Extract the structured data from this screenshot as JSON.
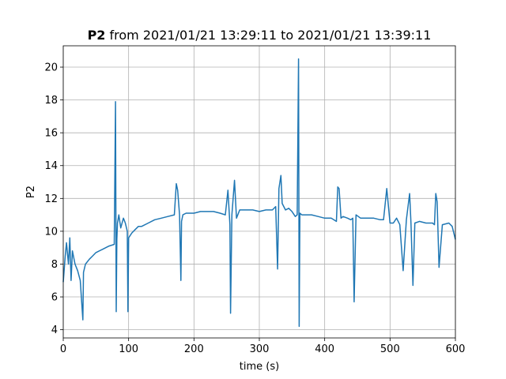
{
  "chart_data": {
    "type": "line",
    "title": {
      "bold": "P2",
      "rest": " from 2021/01/21 13:29:11 to 2021/01/21 13:39:11"
    },
    "xlabel": "time (s)",
    "ylabel": "P2",
    "xlim": [
      0,
      600
    ],
    "ylim": [
      3.5,
      21.3
    ],
    "x_ticks": [
      0,
      100,
      200,
      300,
      400,
      500,
      600
    ],
    "y_ticks": [
      4,
      6,
      8,
      10,
      12,
      14,
      16,
      18,
      20
    ],
    "grid": true,
    "color": "#1f77b4",
    "series": [
      {
        "x": [
          0,
          3,
          5,
          8,
          10,
          12,
          14,
          18,
          22,
          26,
          30,
          31,
          34,
          40,
          45,
          50,
          60,
          70,
          78,
          80,
          81,
          82,
          83,
          85,
          88,
          92,
          95,
          98,
          99,
          100,
          105,
          110,
          115,
          120,
          130,
          140,
          150,
          160,
          170,
          173,
          175,
          178,
          180,
          181,
          183,
          188,
          195,
          200,
          210,
          220,
          230,
          240,
          248,
          252,
          255,
          256,
          258,
          262,
          265,
          270,
          280,
          290,
          300,
          310,
          320,
          325,
          328,
          330,
          333,
          335,
          340,
          345,
          350,
          355,
          358,
          360,
          361,
          362,
          365,
          370,
          380,
          390,
          400,
          410,
          418,
          420,
          422,
          425,
          428,
          435,
          440,
          443,
          445,
          448,
          455,
          465,
          475,
          485,
          490,
          495,
          500,
          505,
          510,
          515,
          520,
          525,
          530,
          532,
          535,
          538,
          545,
          555,
          560,
          565,
          568,
          570,
          572,
          575,
          580,
          590,
          595,
          600
        ],
        "y": [
          6.9,
          8.5,
          9.3,
          8.0,
          9.6,
          7.0,
          8.8,
          8.0,
          7.6,
          7.0,
          4.6,
          7.5,
          8.0,
          8.3,
          8.5,
          8.7,
          8.9,
          9.1,
          9.2,
          17.9,
          5.1,
          9.5,
          10.5,
          11.0,
          10.2,
          10.8,
          10.5,
          10.0,
          5.1,
          9.6,
          9.9,
          10.1,
          10.3,
          10.3,
          10.5,
          10.7,
          10.8,
          10.9,
          11.0,
          12.9,
          12.5,
          11.0,
          7.0,
          10.6,
          11.0,
          11.1,
          11.1,
          11.1,
          11.2,
          11.2,
          11.2,
          11.1,
          11.0,
          12.5,
          10.4,
          5.0,
          11.0,
          13.1,
          10.8,
          11.3,
          11.3,
          11.3,
          11.2,
          11.3,
          11.3,
          11.5,
          7.7,
          12.6,
          13.4,
          11.7,
          11.3,
          11.4,
          11.2,
          10.9,
          11.0,
          20.5,
          4.2,
          11.1,
          11.0,
          11.0,
          11.0,
          10.9,
          10.8,
          10.8,
          10.6,
          12.7,
          12.6,
          10.8,
          10.9,
          10.8,
          10.7,
          10.8,
          5.7,
          11.0,
          10.8,
          10.8,
          10.8,
          10.7,
          10.7,
          12.6,
          10.5,
          10.5,
          10.8,
          10.4,
          7.6,
          10.7,
          12.3,
          10.5,
          6.7,
          10.5,
          10.6,
          10.5,
          10.5,
          10.5,
          10.4,
          12.3,
          11.8,
          7.8,
          10.4,
          10.5,
          10.3,
          9.5
        ]
      }
    ]
  }
}
